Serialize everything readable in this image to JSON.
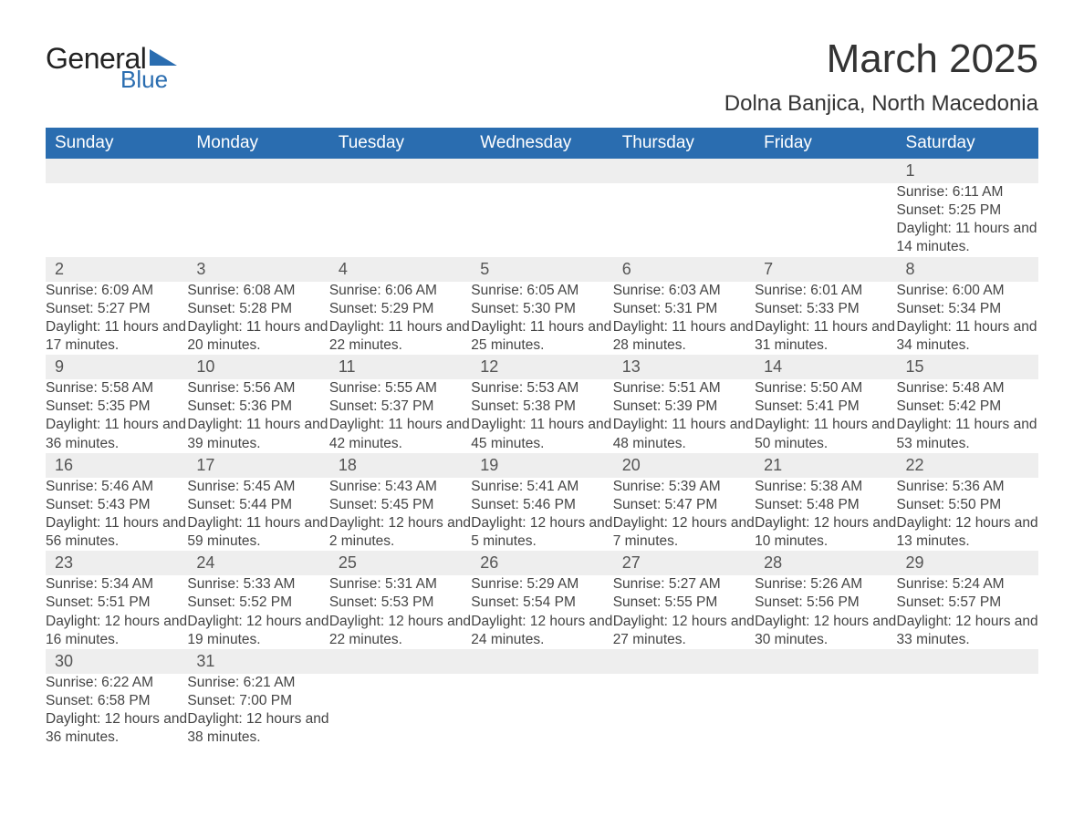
{
  "logo": {
    "line1": "General",
    "line2": "Blue",
    "accent_color": "#2a6db0"
  },
  "title": "March 2025",
  "location": "Dolna Banjica, North Macedonia",
  "day_headers": [
    "Sunday",
    "Monday",
    "Tuesday",
    "Wednesday",
    "Thursday",
    "Friday",
    "Saturday"
  ],
  "colors": {
    "header_bg": "#2a6db0",
    "header_text": "#ffffff",
    "daynum_bg": "#eeeeee",
    "row_divider": "#2a6db0",
    "text": "#444444",
    "background": "#ffffff"
  },
  "label_sunrise": "Sunrise: ",
  "label_sunset": "Sunset: ",
  "label_daylight": "Daylight: ",
  "weeks": [
    [
      null,
      null,
      null,
      null,
      null,
      null,
      {
        "n": "1",
        "sunrise": "6:11 AM",
        "sunset": "5:25 PM",
        "daylight": "11 hours and 14 minutes."
      }
    ],
    [
      {
        "n": "2",
        "sunrise": "6:09 AM",
        "sunset": "5:27 PM",
        "daylight": "11 hours and 17 minutes."
      },
      {
        "n": "3",
        "sunrise": "6:08 AM",
        "sunset": "5:28 PM",
        "daylight": "11 hours and 20 minutes."
      },
      {
        "n": "4",
        "sunrise": "6:06 AM",
        "sunset": "5:29 PM",
        "daylight": "11 hours and 22 minutes."
      },
      {
        "n": "5",
        "sunrise": "6:05 AM",
        "sunset": "5:30 PM",
        "daylight": "11 hours and 25 minutes."
      },
      {
        "n": "6",
        "sunrise": "6:03 AM",
        "sunset": "5:31 PM",
        "daylight": "11 hours and 28 minutes."
      },
      {
        "n": "7",
        "sunrise": "6:01 AM",
        "sunset": "5:33 PM",
        "daylight": "11 hours and 31 minutes."
      },
      {
        "n": "8",
        "sunrise": "6:00 AM",
        "sunset": "5:34 PM",
        "daylight": "11 hours and 34 minutes."
      }
    ],
    [
      {
        "n": "9",
        "sunrise": "5:58 AM",
        "sunset": "5:35 PM",
        "daylight": "11 hours and 36 minutes."
      },
      {
        "n": "10",
        "sunrise": "5:56 AM",
        "sunset": "5:36 PM",
        "daylight": "11 hours and 39 minutes."
      },
      {
        "n": "11",
        "sunrise": "5:55 AM",
        "sunset": "5:37 PM",
        "daylight": "11 hours and 42 minutes."
      },
      {
        "n": "12",
        "sunrise": "5:53 AM",
        "sunset": "5:38 PM",
        "daylight": "11 hours and 45 minutes."
      },
      {
        "n": "13",
        "sunrise": "5:51 AM",
        "sunset": "5:39 PM",
        "daylight": "11 hours and 48 minutes."
      },
      {
        "n": "14",
        "sunrise": "5:50 AM",
        "sunset": "5:41 PM",
        "daylight": "11 hours and 50 minutes."
      },
      {
        "n": "15",
        "sunrise": "5:48 AM",
        "sunset": "5:42 PM",
        "daylight": "11 hours and 53 minutes."
      }
    ],
    [
      {
        "n": "16",
        "sunrise": "5:46 AM",
        "sunset": "5:43 PM",
        "daylight": "11 hours and 56 minutes."
      },
      {
        "n": "17",
        "sunrise": "5:45 AM",
        "sunset": "5:44 PM",
        "daylight": "11 hours and 59 minutes."
      },
      {
        "n": "18",
        "sunrise": "5:43 AM",
        "sunset": "5:45 PM",
        "daylight": "12 hours and 2 minutes."
      },
      {
        "n": "19",
        "sunrise": "5:41 AM",
        "sunset": "5:46 PM",
        "daylight": "12 hours and 5 minutes."
      },
      {
        "n": "20",
        "sunrise": "5:39 AM",
        "sunset": "5:47 PM",
        "daylight": "12 hours and 7 minutes."
      },
      {
        "n": "21",
        "sunrise": "5:38 AM",
        "sunset": "5:48 PM",
        "daylight": "12 hours and 10 minutes."
      },
      {
        "n": "22",
        "sunrise": "5:36 AM",
        "sunset": "5:50 PM",
        "daylight": "12 hours and 13 minutes."
      }
    ],
    [
      {
        "n": "23",
        "sunrise": "5:34 AM",
        "sunset": "5:51 PM",
        "daylight": "12 hours and 16 minutes."
      },
      {
        "n": "24",
        "sunrise": "5:33 AM",
        "sunset": "5:52 PM",
        "daylight": "12 hours and 19 minutes."
      },
      {
        "n": "25",
        "sunrise": "5:31 AM",
        "sunset": "5:53 PM",
        "daylight": "12 hours and 22 minutes."
      },
      {
        "n": "26",
        "sunrise": "5:29 AM",
        "sunset": "5:54 PM",
        "daylight": "12 hours and 24 minutes."
      },
      {
        "n": "27",
        "sunrise": "5:27 AM",
        "sunset": "5:55 PM",
        "daylight": "12 hours and 27 minutes."
      },
      {
        "n": "28",
        "sunrise": "5:26 AM",
        "sunset": "5:56 PM",
        "daylight": "12 hours and 30 minutes."
      },
      {
        "n": "29",
        "sunrise": "5:24 AM",
        "sunset": "5:57 PM",
        "daylight": "12 hours and 33 minutes."
      }
    ],
    [
      {
        "n": "30",
        "sunrise": "6:22 AM",
        "sunset": "6:58 PM",
        "daylight": "12 hours and 36 minutes."
      },
      {
        "n": "31",
        "sunrise": "6:21 AM",
        "sunset": "7:00 PM",
        "daylight": "12 hours and 38 minutes."
      },
      null,
      null,
      null,
      null,
      null
    ]
  ]
}
